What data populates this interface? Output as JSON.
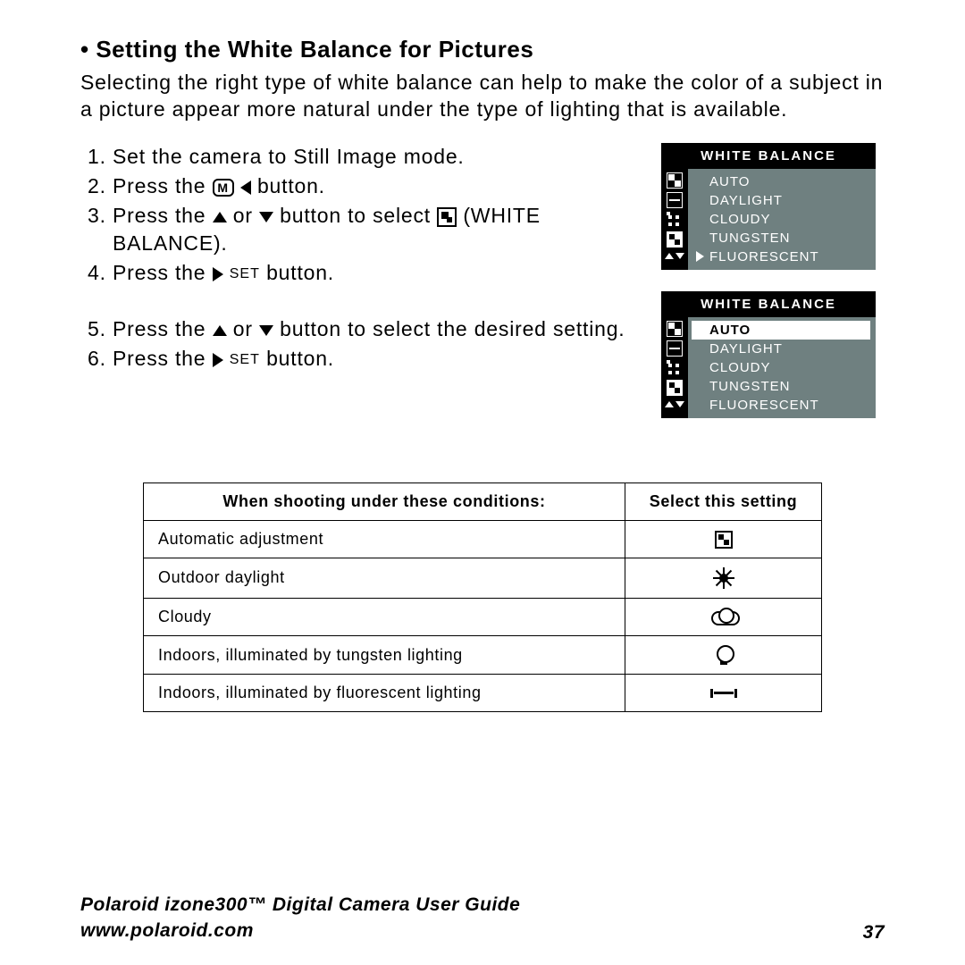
{
  "heading_bullet": "•",
  "heading": "Setting the White Balance for Pictures",
  "intro": "Selecting the right type of white balance can help to make the color of a subject in a picture appear more natural under the type of lighting that is available.",
  "steps": {
    "s1": "Set the camera to Still Image mode.",
    "s2a": "Press the ",
    "s2b": " button.",
    "s3a": "Press the ",
    "s3b": " or ",
    "s3c": " button to select ",
    "s3d": " (WHITE BALANCE).",
    "s4a": "Press the ",
    "s4b": " button.",
    "s5a": "Press the ",
    "s5b": " or ",
    "s5c": " button to select the desired setting.",
    "s6a": "Press the ",
    "s6b": " button."
  },
  "m_label": "M",
  "set_label": "SET",
  "menus": {
    "title": "WHITE BALANCE",
    "items": [
      "AUTO",
      "DAYLIGHT",
      "CLOUDY",
      "TUNGSTEN",
      "FLUORESCENT"
    ],
    "menu1_selected_index": 4,
    "menu2_highlight_index": 0
  },
  "table": {
    "header_left": "When shooting under these conditions:",
    "header_right": "Select this setting",
    "rows": [
      {
        "cond": "Automatic adjustment",
        "sym": "auto"
      },
      {
        "cond": "Outdoor daylight",
        "sym": "sun"
      },
      {
        "cond": "Cloudy",
        "sym": "cloud"
      },
      {
        "cond": "Indoors, illuminated by tungsten lighting",
        "sym": "bulb"
      },
      {
        "cond": "Indoors, illuminated by fluorescent lighting",
        "sym": "fluor"
      }
    ]
  },
  "footer": {
    "line1": "Polaroid izone300™ Digital Camera User Guide",
    "line2": "www.polaroid.com",
    "page": "37"
  },
  "colors": {
    "menu_bg": "#6f8080",
    "menu_text": "#ffffff",
    "menu_header_bg": "#000000",
    "page_bg": "#ffffff",
    "text": "#000000"
  }
}
